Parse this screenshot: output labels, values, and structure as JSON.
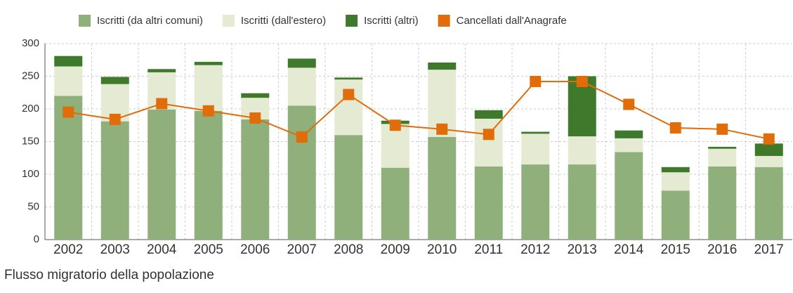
{
  "chart_data": {
    "type": "bar",
    "stacked": true,
    "title": "Flusso migratorio della popolazione",
    "categories": [
      "2002",
      "2003",
      "2004",
      "2005",
      "2006",
      "2007",
      "2008",
      "2009",
      "2010",
      "2011",
      "2012",
      "2013",
      "2014",
      "2015",
      "2016",
      "2017"
    ],
    "series": [
      {
        "name": "Iscritti (da altri comuni)",
        "color": "#8fb07a",
        "values": [
          220,
          181,
          199,
          197,
          184,
          205,
          160,
          110,
          157,
          112,
          115,
          115,
          134,
          75,
          112,
          111
        ]
      },
      {
        "name": "Iscritti (dall'estero)",
        "color": "#e4ebd2",
        "values": [
          45,
          57,
          57,
          70,
          33,
          58,
          85,
          67,
          103,
          73,
          47,
          43,
          21,
          28,
          27,
          17
        ]
      },
      {
        "name": "Iscritti (altri)",
        "color": "#3f7a2c",
        "values": [
          16,
          11,
          5,
          5,
          7,
          14,
          3,
          5,
          11,
          13,
          3,
          92,
          12,
          8,
          3,
          19
        ]
      },
      {
        "name": "Cancellati dall'Anagrafe",
        "color": "#e06c0a",
        "type": "line",
        "values": [
          195,
          184,
          208,
          197,
          186,
          157,
          222,
          175,
          169,
          161,
          242,
          242,
          207,
          171,
          169,
          154
        ]
      }
    ],
    "ylim": [
      0,
      300
    ],
    "yticks": [
      0,
      50,
      100,
      150,
      200,
      250,
      300
    ],
    "grid": true,
    "legend": "top"
  }
}
